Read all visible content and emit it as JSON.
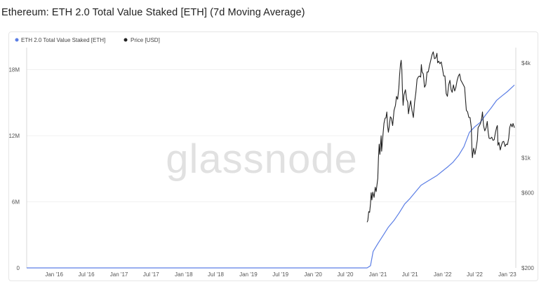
{
  "page_title": "Ethereum: ETH 2.0 Total Value Staked [ETH] (7d Moving Average)",
  "watermark": "glassnode",
  "colors": {
    "staked": "#5b7ee5",
    "price": "#222222",
    "grid": "#f0f0f0",
    "axis_text": "#555555"
  },
  "chart_data": {
    "type": "line",
    "title": "Ethereum: ETH 2.0 Total Value Staked [ETH] (7d Moving Average)",
    "legend_position": "top-left",
    "x_tick_labels": [
      "Jan '16",
      "Jul '16",
      "Jan '17",
      "Jul '17",
      "Jan '18",
      "Jul '18",
      "Jan '19",
      "Jul '19",
      "Jan '20",
      "Jul '20",
      "Jan '21",
      "Jul '21",
      "Jan '22",
      "Jul '22",
      "Jan '23"
    ],
    "y_left": {
      "ticks": [
        "0",
        "6M",
        "12M",
        "18M"
      ],
      "tick_values": [
        0,
        6000000,
        12000000,
        18000000
      ],
      "range": [
        0,
        20000000
      ]
    },
    "y_right": {
      "scale": "log",
      "ticks": [
        "$200",
        "$600",
        "$1k",
        "$4k"
      ],
      "tick_values": [
        200,
        600,
        1000,
        4000
      ],
      "range": [
        200,
        5000
      ]
    },
    "series": [
      {
        "name": "ETH 2.0 Total Value Staked [ETH]",
        "axis": "left",
        "points": [
          [
            "2015-07-30",
            0
          ],
          [
            "2020-11-01",
            0
          ],
          [
            "2020-11-20",
            200000
          ],
          [
            "2020-12-05",
            1500000
          ],
          [
            "2020-12-31",
            2200000
          ],
          [
            "2021-02-01",
            3000000
          ],
          [
            "2021-03-01",
            3700000
          ],
          [
            "2021-04-01",
            4300000
          ],
          [
            "2021-05-01",
            5000000
          ],
          [
            "2021-06-01",
            5800000
          ],
          [
            "2021-07-01",
            6300000
          ],
          [
            "2021-08-01",
            6900000
          ],
          [
            "2021-09-01",
            7500000
          ],
          [
            "2021-10-01",
            7800000
          ],
          [
            "2021-11-01",
            8100000
          ],
          [
            "2021-12-01",
            8400000
          ],
          [
            "2022-01-01",
            8800000
          ],
          [
            "2022-02-01",
            9200000
          ],
          [
            "2022-03-01",
            9600000
          ],
          [
            "2022-04-01",
            10200000
          ],
          [
            "2022-05-01",
            11000000
          ],
          [
            "2022-06-01",
            12300000
          ],
          [
            "2022-07-01",
            12800000
          ],
          [
            "2022-08-01",
            13200000
          ],
          [
            "2022-09-01",
            13900000
          ],
          [
            "2022-10-01",
            14500000
          ],
          [
            "2022-11-01",
            15200000
          ],
          [
            "2022-12-01",
            15600000
          ],
          [
            "2023-01-01",
            16000000
          ],
          [
            "2023-02-10",
            16600000
          ]
        ]
      },
      {
        "name": "Price [USD]",
        "axis": "right",
        "points": [
          [
            "2020-11-01",
            390
          ],
          [
            "2020-11-05",
            400
          ],
          [
            "2020-11-10",
            455
          ],
          [
            "2020-11-15",
            450
          ],
          [
            "2020-11-20",
            510
          ],
          [
            "2020-11-24",
            600
          ],
          [
            "2020-11-28",
            540
          ],
          [
            "2020-12-03",
            605
          ],
          [
            "2020-12-10",
            560
          ],
          [
            "2020-12-17",
            650
          ],
          [
            "2020-12-22",
            610
          ],
          [
            "2020-12-31",
            740
          ],
          [
            "2021-01-04",
            1000
          ],
          [
            "2021-01-08",
            1220
          ],
          [
            "2021-01-12",
            1050
          ],
          [
            "2021-01-19",
            1380
          ],
          [
            "2021-01-22",
            1100
          ],
          [
            "2021-01-28",
            1330
          ],
          [
            "2021-02-04",
            1650
          ],
          [
            "2021-02-10",
            1780
          ],
          [
            "2021-02-15",
            1790
          ],
          [
            "2021-02-20",
            1950
          ],
          [
            "2021-02-24",
            1600
          ],
          [
            "2021-03-01",
            1450
          ],
          [
            "2021-03-05",
            1550
          ],
          [
            "2021-03-12",
            1820
          ],
          [
            "2021-03-18",
            1780
          ],
          [
            "2021-03-25",
            1600
          ],
          [
            "2021-04-02",
            2000
          ],
          [
            "2021-04-10",
            2150
          ],
          [
            "2021-04-16",
            2450
          ],
          [
            "2021-04-22",
            2350
          ],
          [
            "2021-04-29",
            2770
          ],
          [
            "2021-05-03",
            3300
          ],
          [
            "2021-05-08",
            3900
          ],
          [
            "2021-05-12",
            4150
          ],
          [
            "2021-05-16",
            3600
          ],
          [
            "2021-05-19",
            2700
          ],
          [
            "2021-05-23",
            2150
          ],
          [
            "2021-05-28",
            2500
          ],
          [
            "2021-06-05",
            2700
          ],
          [
            "2021-06-12",
            2350
          ],
          [
            "2021-06-18",
            2250
          ],
          [
            "2021-06-22",
            1900
          ],
          [
            "2021-06-28",
            2100
          ],
          [
            "2021-07-05",
            2300
          ],
          [
            "2021-07-12",
            2000
          ],
          [
            "2021-07-20",
            1800
          ],
          [
            "2021-07-27",
            2250
          ],
          [
            "2021-08-03",
            2600
          ],
          [
            "2021-08-10",
            3150
          ],
          [
            "2021-08-16",
            3250
          ],
          [
            "2021-08-23",
            3300
          ],
          [
            "2021-08-30",
            3250
          ],
          [
            "2021-09-03",
            3900
          ],
          [
            "2021-09-07",
            3500
          ],
          [
            "2021-09-14",
            3400
          ],
          [
            "2021-09-21",
            2800
          ],
          [
            "2021-09-28",
            2900
          ],
          [
            "2021-10-05",
            3500
          ],
          [
            "2021-10-12",
            3500
          ],
          [
            "2021-10-19",
            3850
          ],
          [
            "2021-10-26",
            4150
          ],
          [
            "2021-11-02",
            4500
          ],
          [
            "2021-11-09",
            4700
          ],
          [
            "2021-11-16",
            4250
          ],
          [
            "2021-11-23",
            4300
          ],
          [
            "2021-11-30",
            4600
          ],
          [
            "2021-12-04",
            4000
          ],
          [
            "2021-12-10",
            4100
          ],
          [
            "2021-12-17",
            3950
          ],
          [
            "2021-12-24",
            4050
          ],
          [
            "2021-12-31",
            3700
          ],
          [
            "2022-01-07",
            3300
          ],
          [
            "2022-01-14",
            3300
          ],
          [
            "2022-01-21",
            2550
          ],
          [
            "2022-01-28",
            2450
          ],
          [
            "2022-02-04",
            2900
          ],
          [
            "2022-02-11",
            3100
          ],
          [
            "2022-02-18",
            2700
          ],
          [
            "2022-02-24",
            2600
          ],
          [
            "2022-03-03",
            2900
          ],
          [
            "2022-03-10",
            2650
          ],
          [
            "2022-03-17",
            2800
          ],
          [
            "2022-03-24",
            3100
          ],
          [
            "2022-03-31",
            3300
          ],
          [
            "2022-04-07",
            3400
          ],
          [
            "2022-04-14",
            3100
          ],
          [
            "2022-04-21",
            3000
          ],
          [
            "2022-04-28",
            2900
          ],
          [
            "2022-05-05",
            2800
          ],
          [
            "2022-05-10",
            2350
          ],
          [
            "2022-05-15",
            2000
          ],
          [
            "2022-05-22",
            1950
          ],
          [
            "2022-05-29",
            1800
          ],
          [
            "2022-06-05",
            1800
          ],
          [
            "2022-06-12",
            1550
          ],
          [
            "2022-06-15",
            1150
          ],
          [
            "2022-06-18",
            1000
          ],
          [
            "2022-06-25",
            1150
          ],
          [
            "2022-07-02",
            1050
          ],
          [
            "2022-07-09",
            1150
          ],
          [
            "2022-07-16",
            1300
          ],
          [
            "2022-07-20",
            1550
          ],
          [
            "2022-07-27",
            1600
          ],
          [
            "2022-08-03",
            1650
          ],
          [
            "2022-08-10",
            1800
          ],
          [
            "2022-08-14",
            1950
          ],
          [
            "2022-08-20",
            1600
          ],
          [
            "2022-08-27",
            1480
          ],
          [
            "2022-09-03",
            1550
          ],
          [
            "2022-09-10",
            1700
          ],
          [
            "2022-09-15",
            1450
          ],
          [
            "2022-09-20",
            1330
          ],
          [
            "2022-09-27",
            1320
          ],
          [
            "2022-10-05",
            1350
          ],
          [
            "2022-10-12",
            1290
          ],
          [
            "2022-10-19",
            1300
          ],
          [
            "2022-10-26",
            1450
          ],
          [
            "2022-11-02",
            1560
          ],
          [
            "2022-11-06",
            1600
          ],
          [
            "2022-11-09",
            1200
          ],
          [
            "2022-11-15",
            1250
          ],
          [
            "2022-11-22",
            1120
          ],
          [
            "2022-11-29",
            1200
          ],
          [
            "2022-12-05",
            1260
          ],
          [
            "2022-12-12",
            1270
          ],
          [
            "2022-12-19",
            1180
          ],
          [
            "2022-12-26",
            1220
          ],
          [
            "2023-01-02",
            1210
          ],
          [
            "2023-01-09",
            1330
          ],
          [
            "2023-01-14",
            1550
          ],
          [
            "2023-01-21",
            1640
          ],
          [
            "2023-01-28",
            1570
          ],
          [
            "2023-02-02",
            1650
          ],
          [
            "2023-02-10",
            1550
          ]
        ]
      }
    ]
  }
}
